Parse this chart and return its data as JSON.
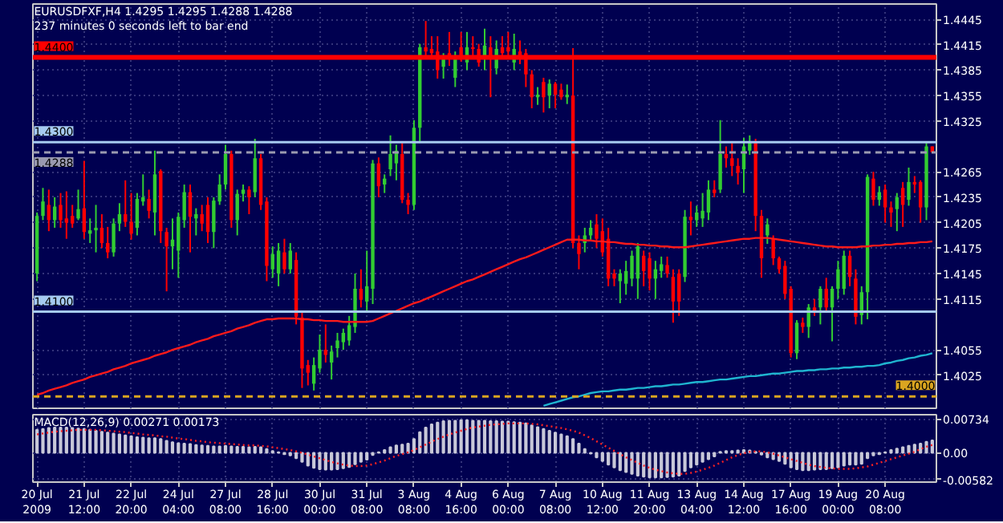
{
  "chart_data": [
    {
      "type": "candlestick",
      "title": "EURUSDFXF,H4  1.4295 1.4295 1.4288 1.4288",
      "subtitle": "237 minutes 0 seconds left to bar end",
      "categories": [
        null,
        null,
        null,
        null,
        null,
        null,
        null,
        null,
        null,
        null,
        null,
        null,
        null,
        null,
        null,
        null,
        null,
        null,
        null,
        null,
        null,
        null,
        null,
        null,
        null,
        null,
        null,
        null,
        null,
        null,
        null,
        null,
        null,
        null,
        null,
        null,
        null,
        null,
        null,
        null,
        null,
        null,
        null,
        null,
        null,
        null,
        null,
        null,
        null,
        null,
        null,
        null,
        null,
        null,
        null,
        null,
        null,
        null,
        null,
        null,
        null,
        null,
        null,
        null,
        null,
        null,
        null,
        null,
        null,
        null,
        null,
        null,
        null,
        null,
        null,
        null,
        null,
        null,
        null,
        null,
        null,
        null,
        null,
        null,
        null,
        null,
        null,
        null,
        null,
        null,
        null,
        null,
        null,
        null,
        null,
        null,
        null,
        null,
        null,
        null,
        null,
        null,
        null,
        null,
        null,
        null,
        null,
        null,
        null,
        null,
        null,
        null,
        null,
        null,
        null,
        null,
        null,
        null,
        null,
        null,
        null,
        null,
        null,
        null,
        null,
        null,
        null,
        null,
        null,
        null,
        null,
        null,
        null,
        null,
        null,
        null,
        null,
        null,
        null,
        null,
        null,
        null,
        null,
        null,
        null,
        null,
        null,
        null,
        null,
        null,
        null,
        null,
        null
      ],
      "ohlc": [
        [
          1.4145,
          1.4217,
          1.4136,
          1.4213
        ],
        [
          1.4213,
          1.4246,
          1.4208,
          1.423
        ],
        [
          1.4226,
          1.4244,
          1.4195,
          1.4208
        ],
        [
          1.4208,
          1.4235,
          1.4199,
          1.4224
        ],
        [
          1.4226,
          1.424,
          1.4199,
          1.4208
        ],
        [
          1.421,
          1.4242,
          1.4186,
          1.4205
        ],
        [
          1.4213,
          1.4226,
          1.4199,
          1.4204
        ],
        [
          1.421,
          1.4244,
          1.4208,
          1.4221
        ],
        [
          1.4222,
          1.4278,
          1.4186,
          1.4194
        ],
        [
          1.4192,
          1.421,
          1.4181,
          1.4196
        ],
        [
          1.4196,
          1.4226,
          1.417,
          1.4199
        ],
        [
          1.4199,
          1.4215,
          1.4175,
          1.4181
        ],
        [
          1.4181,
          1.42,
          1.4163,
          1.417
        ],
        [
          1.417,
          1.421,
          1.4165,
          1.4204
        ],
        [
          1.4204,
          1.4228,
          1.4195,
          1.4215
        ],
        [
          1.4215,
          1.4255,
          1.42,
          1.4206
        ],
        [
          1.4206,
          1.424,
          1.4185,
          1.4192
        ],
        [
          1.4199,
          1.424,
          1.419,
          1.4233
        ],
        [
          1.423,
          1.4262,
          1.4225,
          1.4235
        ],
        [
          1.4233,
          1.4244,
          1.421,
          1.4219
        ],
        [
          1.4217,
          1.429,
          1.419,
          1.4262
        ],
        [
          1.4266,
          1.4268,
          1.4181,
          1.4195
        ],
        [
          1.4194,
          1.4199,
          1.4124,
          1.4177
        ],
        [
          1.4177,
          1.421,
          1.415,
          1.4185
        ],
        [
          1.4172,
          1.4217,
          1.414,
          1.4212
        ],
        [
          1.4208,
          1.425,
          1.4199,
          1.4241
        ],
        [
          1.4241,
          1.425,
          1.417,
          1.4212
        ],
        [
          1.421,
          1.4222,
          1.419,
          1.4215
        ],
        [
          1.4215,
          1.4226,
          1.4195,
          1.4204
        ],
        [
          1.4226,
          1.4235,
          1.4181,
          1.4194
        ],
        [
          1.4194,
          1.4235,
          1.4175,
          1.4231
        ],
        [
          1.423,
          1.4262,
          1.4226,
          1.425
        ],
        [
          1.425,
          1.4297,
          1.4244,
          1.4286
        ],
        [
          1.4286,
          1.429,
          1.4199,
          1.4208
        ],
        [
          1.4208,
          1.4244,
          1.419,
          1.4239
        ],
        [
          1.4239,
          1.425,
          1.423,
          1.4244
        ],
        [
          1.4244,
          1.4248,
          1.4215,
          1.4235
        ],
        [
          1.4241,
          1.4304,
          1.4235,
          1.4281
        ],
        [
          1.4281,
          1.4286,
          1.422,
          1.4226
        ],
        [
          1.423,
          1.4235,
          1.4136,
          1.4154
        ],
        [
          1.415,
          1.4177,
          1.414,
          1.4168
        ],
        [
          1.4145,
          1.4181,
          1.413,
          1.4172
        ],
        [
          1.417,
          1.4186,
          1.4145,
          1.415
        ],
        [
          1.415,
          1.4181,
          1.4145,
          1.4172
        ],
        [
          1.4161,
          1.417,
          1.4085,
          1.4094
        ],
        [
          1.4093,
          1.41,
          1.401,
          1.4033
        ],
        [
          1.4037,
          1.4043,
          1.4013,
          1.4028
        ],
        [
          1.4015,
          1.4046,
          1.4007,
          1.4037
        ],
        [
          1.4033,
          1.4073,
          1.4028,
          1.4055
        ],
        [
          1.4055,
          1.4085,
          1.404,
          1.4049
        ],
        [
          1.404,
          1.406,
          1.402,
          1.4053
        ],
        [
          1.4057,
          1.4075,
          1.4046,
          1.4066
        ],
        [
          1.4064,
          1.408,
          1.4055,
          1.4075
        ],
        [
          1.4066,
          1.4095,
          1.406,
          1.4084
        ],
        [
          1.4082,
          1.4145,
          1.4075,
          1.4127
        ],
        [
          1.4127,
          1.415,
          1.4105,
          1.4114
        ],
        [
          1.4112,
          1.4172,
          1.41,
          1.413
        ],
        [
          1.4127,
          1.4279,
          1.4109,
          1.4275
        ],
        [
          1.4275,
          1.4282,
          1.4235,
          1.4248
        ],
        [
          1.425,
          1.4262,
          1.424,
          1.4257
        ],
        [
          1.4268,
          1.4308,
          1.426,
          1.4286
        ],
        [
          1.4275,
          1.4297,
          1.4255,
          1.429
        ],
        [
          1.4286,
          1.4299,
          1.4228,
          1.4232
        ],
        [
          1.4232,
          1.424,
          1.4215,
          1.4226
        ],
        [
          1.4226,
          1.4326,
          1.422,
          1.4317
        ],
        [
          1.4317,
          1.4416,
          1.4299,
          1.4412
        ],
        [
          1.4412,
          1.4443,
          1.44,
          1.4407
        ],
        [
          1.441,
          1.4425,
          1.4398,
          1.4405
        ],
        [
          1.4407,
          1.4425,
          1.4375,
          1.4385
        ],
        [
          1.4389,
          1.4405,
          1.4375,
          1.44
        ],
        [
          1.4405,
          1.443,
          1.439,
          1.4398
        ],
        [
          1.4376,
          1.4407,
          1.4365,
          1.4398
        ],
        [
          1.4412,
          1.443,
          1.4395,
          1.4402
        ],
        [
          1.4394,
          1.443,
          1.4385,
          1.4412
        ],
        [
          1.4412,
          1.4425,
          1.44,
          1.441
        ],
        [
          1.441,
          1.4416,
          1.4389,
          1.4394
        ],
        [
          1.4398,
          1.4434,
          1.4385,
          1.4414
        ],
        [
          1.4412,
          1.4425,
          1.4353,
          1.4398
        ],
        [
          1.4387,
          1.442,
          1.438,
          1.441
        ],
        [
          1.4412,
          1.4425,
          1.44,
          1.4405
        ],
        [
          1.4412,
          1.443,
          1.44,
          1.4407
        ],
        [
          1.4394,
          1.4428,
          1.4385,
          1.441
        ],
        [
          1.4407,
          1.442,
          1.4392,
          1.4401
        ],
        [
          1.4405,
          1.441,
          1.4365,
          1.438
        ],
        [
          1.438,
          1.4385,
          1.434,
          1.4353
        ],
        [
          1.4353,
          1.4365,
          1.4344,
          1.4356
        ],
        [
          1.4371,
          1.4376,
          1.4335,
          1.4353
        ],
        [
          1.4355,
          1.4374,
          1.434,
          1.4369
        ],
        [
          1.4369,
          1.4371,
          1.434,
          1.4356
        ],
        [
          1.4362,
          1.4369,
          1.435,
          1.4353
        ],
        [
          1.4353,
          1.4368,
          1.4345,
          1.4356
        ],
        [
          1.4355,
          1.4411,
          1.4175,
          1.4181
        ],
        [
          1.4181,
          1.419,
          1.415,
          1.4168
        ],
        [
          1.4181,
          1.4199,
          1.417,
          1.419
        ],
        [
          1.419,
          1.4208,
          1.4185,
          1.4199
        ],
        [
          1.4203,
          1.4215,
          1.4175,
          1.4186
        ],
        [
          1.4195,
          1.421,
          1.4165,
          1.417
        ],
        [
          1.4186,
          1.4199,
          1.413,
          1.4139
        ],
        [
          1.4145,
          1.415,
          1.413,
          1.4139
        ],
        [
          1.4136,
          1.415,
          1.411,
          1.4145
        ],
        [
          1.4133,
          1.416,
          1.412,
          1.4148
        ],
        [
          1.4139,
          1.4172,
          1.413,
          1.4166
        ],
        [
          1.4139,
          1.4181,
          1.4115,
          1.4177
        ],
        [
          1.4166,
          1.4172,
          1.413,
          1.4148
        ],
        [
          1.4163,
          1.417,
          1.4125,
          1.4139
        ],
        [
          1.4139,
          1.416,
          1.4115,
          1.415
        ],
        [
          1.4148,
          1.4165,
          1.414,
          1.4156
        ],
        [
          1.4155,
          1.4165,
          1.414,
          1.4145
        ],
        [
          1.4141,
          1.415,
          1.4087,
          1.4112
        ],
        [
          1.4145,
          1.415,
          1.4095,
          1.4112
        ],
        [
          1.4141,
          1.422,
          1.4135,
          1.4212
        ],
        [
          1.4212,
          1.423,
          1.419,
          1.4208
        ],
        [
          1.4208,
          1.4225,
          1.42,
          1.4217
        ],
        [
          1.421,
          1.424,
          1.42,
          1.4219
        ],
        [
          1.4217,
          1.4255,
          1.4208,
          1.4244
        ],
        [
          1.4244,
          1.4255,
          1.4235,
          1.424
        ],
        [
          1.4244,
          1.4326,
          1.424,
          1.4286
        ],
        [
          1.4286,
          1.4295,
          1.427,
          1.4281
        ],
        [
          1.4281,
          1.4299,
          1.426,
          1.4272
        ],
        [
          1.4272,
          1.4281,
          1.425,
          1.4264
        ],
        [
          1.4268,
          1.4305,
          1.424,
          1.4295
        ],
        [
          1.429,
          1.4308,
          1.4285,
          1.4299
        ],
        [
          1.4299,
          1.4304,
          1.4195,
          1.4213
        ],
        [
          1.4213,
          1.422,
          1.414,
          1.4163
        ],
        [
          1.419,
          1.421,
          1.418,
          1.4203
        ],
        [
          1.4186,
          1.419,
          1.4155,
          1.4163
        ],
        [
          1.4163,
          1.4165,
          1.4145,
          1.415
        ],
        [
          1.4154,
          1.416,
          1.4115,
          1.4121
        ],
        [
          1.4127,
          1.413,
          1.4046,
          1.4051
        ],
        [
          1.4051,
          1.409,
          1.4044,
          1.4087
        ],
        [
          1.4087,
          1.4093,
          1.4075,
          1.4082
        ],
        [
          1.4082,
          1.4109,
          1.4069,
          1.4105
        ],
        [
          1.4105,
          1.4115,
          1.4095,
          1.41
        ],
        [
          1.4105,
          1.413,
          1.4085,
          1.4127
        ],
        [
          1.4127,
          1.414,
          1.41,
          1.4105
        ],
        [
          1.4105,
          1.413,
          1.4065,
          1.4127
        ],
        [
          1.4127,
          1.416,
          1.4115,
          1.415
        ],
        [
          1.4127,
          1.4172,
          1.412,
          1.4166
        ],
        [
          1.4166,
          1.4172,
          1.413,
          1.4141
        ],
        [
          1.4139,
          1.415,
          1.4085,
          1.4094
        ],
        [
          1.4096,
          1.413,
          1.4085,
          1.4123
        ],
        [
          1.4123,
          1.4262,
          1.4091,
          1.4259
        ],
        [
          1.4257,
          1.4265,
          1.4225,
          1.4232
        ],
        [
          1.4232,
          1.4248,
          1.4225,
          1.4241
        ],
        [
          1.4244,
          1.425,
          1.4205,
          1.4223
        ],
        [
          1.4223,
          1.423,
          1.42,
          1.4217
        ],
        [
          1.4221,
          1.424,
          1.4195,
          1.4235
        ],
        [
          1.4246,
          1.4253,
          1.42,
          1.4226
        ],
        [
          1.4232,
          1.427,
          1.4225,
          1.4253
        ],
        [
          1.4253,
          1.426,
          1.424,
          1.425
        ],
        [
          1.4253,
          1.4255,
          1.4205,
          1.4223
        ],
        [
          1.4223,
          1.4299,
          1.4208,
          1.4295
        ],
        [
          1.4295,
          1.4295,
          1.4288,
          1.4288
        ]
      ],
      "colors": [
        "#32cd32",
        "#32cd32",
        "#ff0000",
        "#32cd32",
        "#ff0000",
        "#ff0000",
        "#ff0000",
        "#32cd32",
        "#ff0000",
        "#32cd32",
        "#32cd32",
        "#ff0000",
        "#ff0000",
        "#32cd32",
        "#32cd32",
        "#ff0000",
        "#ff0000",
        "#32cd32",
        "#32cd32",
        "#ff0000",
        "#32cd32",
        "#ff0000",
        "#ff0000",
        "#32cd32",
        "#32cd32",
        "#32cd32",
        "#ff0000",
        "#32cd32",
        "#ff0000",
        "#ff0000",
        "#32cd32",
        "#32cd32",
        "#32cd32",
        "#ff0000",
        "#32cd32",
        "#32cd32",
        "#ff0000",
        "#32cd32",
        "#ff0000",
        "#ff0000",
        "#32cd32",
        "#32cd32",
        "#ff0000",
        "#32cd32",
        "#ff0000",
        "#ff0000",
        "#ff0000",
        "#32cd32",
        "#32cd32",
        "#ff0000",
        "#32cd32",
        "#32cd32",
        "#32cd32",
        "#32cd32",
        "#32cd32",
        "#ff0000",
        "#32cd32",
        "#32cd32",
        "#ff0000",
        "#32cd32",
        "#32cd32",
        "#32cd32",
        "#ff0000",
        "#ff0000",
        "#32cd32",
        "#32cd32",
        "#ff0000",
        "#ff0000",
        "#ff0000",
        "#32cd32",
        "#ff0000",
        "#32cd32",
        "#ff0000",
        "#32cd32",
        "#ff0000",
        "#ff0000",
        "#32cd32",
        "#ff0000",
        "#32cd32",
        "#ff0000",
        "#ff0000",
        "#32cd32",
        "#ff0000",
        "#ff0000",
        "#ff0000",
        "#32cd32",
        "#ff0000",
        "#32cd32",
        "#ff0000",
        "#ff0000",
        "#32cd32",
        "#ff0000",
        "#ff0000",
        "#32cd32",
        "#32cd32",
        "#ff0000",
        "#ff0000",
        "#ff0000",
        "#ff0000",
        "#32cd32",
        "#32cd32",
        "#32cd32",
        "#32cd32",
        "#ff0000",
        "#ff0000",
        "#32cd32",
        "#32cd32",
        "#ff0000",
        "#ff0000",
        "#ff0000",
        "#32cd32",
        "#ff0000",
        "#32cd32",
        "#32cd32",
        "#32cd32",
        "#ff0000",
        "#32cd32",
        "#ff0000",
        "#ff0000",
        "#ff0000",
        "#32cd32",
        "#32cd32",
        "#ff0000",
        "#ff0000",
        "#32cd32",
        "#ff0000",
        "#ff0000",
        "#ff0000",
        "#ff0000",
        "#32cd32",
        "#ff0000",
        "#32cd32",
        "#ff0000",
        "#32cd32",
        "#ff0000",
        "#32cd32",
        "#32cd32",
        "#32cd32",
        "#ff0000",
        "#ff0000",
        "#32cd32",
        "#32cd32",
        "#ff0000",
        "#32cd32",
        "#ff0000",
        "#ff0000",
        "#32cd32",
        "#ff0000",
        "#32cd32",
        "#ff0000",
        "#ff0000",
        "#32cd32",
        "#ff0000"
      ],
      "series": [
        {
          "type": "line",
          "color": "#ff1a1a",
          "values": [
            1.4002,
            1.4004,
            1.4007,
            1.4009,
            1.4011,
            1.4013,
            1.4016,
            1.4018,
            1.402,
            1.4023,
            1.4025,
            1.4027,
            1.4029,
            1.4032,
            1.4034,
            1.4036,
            1.4039,
            1.4041,
            1.4043,
            1.4045,
            1.4048,
            1.405,
            1.4052,
            1.4055,
            1.4057,
            1.4059,
            1.4061,
            1.4064,
            1.4066,
            1.4068,
            1.4071,
            1.4073,
            1.4075,
            1.4077,
            1.408,
            1.4082,
            1.4084,
            1.4087,
            1.4089,
            1.4091,
            1.4091,
            1.4092,
            1.4092,
            1.4092,
            1.4092,
            1.4091,
            1.4091,
            1.409,
            1.409,
            1.4089,
            1.4089,
            1.4089,
            1.4088,
            1.4088,
            1.4088,
            1.4088,
            1.4088,
            1.4089,
            1.4092,
            1.4095,
            1.4098,
            1.4101,
            1.4104,
            1.4107,
            1.411,
            1.4112,
            1.4115,
            1.4118,
            1.4121,
            1.4124,
            1.4127,
            1.413,
            1.4133,
            1.4136,
            1.4138,
            1.4141,
            1.4144,
            1.4147,
            1.415,
            1.4153,
            1.4156,
            1.4159,
            1.4162,
            1.4164,
            1.4167,
            1.417,
            1.4173,
            1.4176,
            1.4179,
            1.4182,
            1.4185,
            1.4185,
            1.4185,
            1.4184,
            1.4184,
            1.4183,
            1.4183,
            1.4182,
            1.4182,
            1.4181,
            1.418,
            1.418,
            1.4179,
            1.4179,
            1.4178,
            1.4178,
            1.4177,
            1.4177,
            1.4176,
            1.4176,
            1.4176,
            1.4177,
            1.4178,
            1.4179,
            1.418,
            1.4181,
            1.4182,
            1.4183,
            1.4184,
            1.4185,
            1.4186,
            1.4186,
            1.4187,
            1.4187,
            1.4187,
            1.4186,
            1.4185,
            1.4184,
            1.4183,
            1.4182,
            1.4181,
            1.418,
            1.4179,
            1.4178,
            1.4177,
            1.4177,
            1.4176,
            1.4176,
            1.4176,
            1.4176,
            1.4177,
            1.4177,
            1.4178,
            1.4178,
            1.4179,
            1.4179,
            1.418,
            1.418,
            1.4181,
            1.4181,
            1.4182,
            1.4182,
            1.4183
          ]
        },
        {
          "type": "line",
          "color": "#1fb5d0",
          "values": [
            null,
            null,
            null,
            null,
            null,
            null,
            null,
            null,
            null,
            null,
            null,
            null,
            null,
            null,
            null,
            null,
            null,
            null,
            null,
            null,
            null,
            null,
            null,
            null,
            null,
            null,
            null,
            null,
            null,
            null,
            null,
            null,
            null,
            null,
            null,
            null,
            null,
            null,
            null,
            null,
            null,
            null,
            null,
            null,
            null,
            null,
            null,
            null,
            null,
            null,
            null,
            null,
            null,
            null,
            null,
            null,
            null,
            null,
            null,
            null,
            null,
            null,
            null,
            null,
            null,
            null,
            null,
            null,
            null,
            null,
            null,
            null,
            null,
            null,
            null,
            null,
            null,
            null,
            null,
            null,
            null,
            null,
            null,
            null,
            null,
            null,
            1.3989,
            1.3991,
            1.3993,
            1.3995,
            1.3997,
            1.3999,
            1.4,
            1.4002,
            1.4004,
            1.4005,
            1.4006,
            1.4006,
            1.4007,
            1.4008,
            1.4008,
            1.4009,
            1.401,
            1.401,
            1.4011,
            1.4012,
            1.4012,
            1.4013,
            1.4014,
            1.4014,
            1.4015,
            1.4016,
            1.4017,
            1.4017,
            1.4018,
            1.4019,
            1.402,
            1.402,
            1.4021,
            1.4022,
            1.4023,
            1.4024,
            1.4024,
            1.4025,
            1.4026,
            1.4027,
            1.4027,
            1.4028,
            1.4029,
            1.403,
            1.403,
            1.4031,
            1.4031,
            1.4032,
            1.4032,
            1.4033,
            1.4033,
            1.4034,
            1.4034,
            1.4035,
            1.4035,
            1.4036,
            1.4036,
            1.4037,
            1.4039,
            1.404,
            1.4042,
            1.4043,
            1.4045,
            1.4046,
            1.4048,
            1.4049,
            1.4051
          ]
        }
      ],
      "ylim": [
        1.3986,
        1.4463
      ],
      "yticks": [
        1.4445,
        1.4415,
        1.4385,
        1.4355,
        1.4325,
        1.4265,
        1.4235,
        1.4205,
        1.4175,
        1.4145,
        1.4115,
        1.4055,
        1.4025
      ],
      "ref_lines": [
        {
          "axis": "y",
          "value": 1.44,
          "label": "1.4400",
          "color": "#ff0000",
          "line_style": "solid"
        },
        {
          "axis": "y",
          "value": 1.43,
          "label": "1.4300",
          "color": "#a6caf0",
          "line_style": "solid"
        },
        {
          "axis": "y",
          "value": 1.4288,
          "label": "1.4288",
          "color": "#9a9ab0",
          "line_style": "dashed"
        },
        {
          "axis": "y",
          "value": 1.41,
          "label": "1.4100",
          "color": "#a6caf0",
          "line_style": "solid"
        },
        {
          "axis": "y",
          "value": 1.4,
          "label": "1.4000",
          "color": "#daa520",
          "line_style": "dashed"
        }
      ],
      "grid": true,
      "tick_labels": "y"
    },
    {
      "type": "bar",
      "title": "MACD(12,26,9) 0.00271 0.00173",
      "categories": [
        "20 Jul 2009",
        null,
        null,
        null,
        null,
        null,
        null,
        null,
        "21 Jul 12:00",
        null,
        null,
        null,
        null,
        null,
        null,
        null,
        "22 Jul 20:00",
        null,
        null,
        null,
        null,
        null,
        null,
        null,
        "24 Jul 04:00",
        null,
        null,
        null,
        null,
        null,
        null,
        null,
        "27 Jul 08:00",
        null,
        null,
        null,
        null,
        null,
        null,
        null,
        "28 Jul 16:00",
        null,
        null,
        null,
        null,
        null,
        null,
        null,
        "30 Jul 00:00",
        null,
        null,
        null,
        null,
        null,
        null,
        null,
        "31 Jul 08:00",
        null,
        null,
        null,
        null,
        null,
        null,
        null,
        "3 Aug 08:00",
        null,
        null,
        null,
        null,
        null,
        null,
        null,
        "4 Aug 16:00",
        null,
        null,
        null,
        null,
        null,
        null,
        null,
        "6 Aug 00:00",
        null,
        null,
        null,
        null,
        null,
        null,
        null,
        "7 Aug 08:00",
        null,
        null,
        null,
        null,
        null,
        null,
        null,
        "10 Aug 12:00",
        null,
        null,
        null,
        null,
        null,
        null,
        null,
        "11 Aug 20:00",
        null,
        null,
        null,
        null,
        null,
        null,
        null,
        "13 Aug 04:00",
        null,
        null,
        null,
        null,
        null,
        null,
        null,
        "14 Aug 12:00",
        null,
        null,
        null,
        null,
        null,
        null,
        null,
        "17 Aug 16:00",
        null,
        null,
        null,
        null,
        null,
        null,
        null,
        "19 Aug 00:00",
        null,
        null,
        null,
        null,
        null,
        null,
        null,
        "20 Aug 08:00",
        null,
        null,
        null,
        null,
        null,
        null,
        null,
        null
      ],
      "series": [
        {
          "type": "bar",
          "color": "#c8c8d8",
          "values": [
            0.005,
            0.0052,
            0.0054,
            0.0055,
            0.0055,
            0.0055,
            0.0054,
            0.0053,
            0.0052,
            0.005,
            0.0048,
            0.0046,
            0.0044,
            0.0042,
            0.004,
            0.0038,
            0.0036,
            0.0034,
            0.0033,
            0.0032,
            0.0032,
            0.003,
            0.0026,
            0.0023,
            0.0021,
            0.002,
            0.0019,
            0.0017,
            0.0016,
            0.0015,
            0.0014,
            0.0014,
            0.0015,
            0.0014,
            0.0013,
            0.0013,
            0.0012,
            0.0013,
            0.0012,
            0.0008,
            0.0004,
            0.0001,
            -0.0003,
            -0.0006,
            -0.0012,
            -0.002,
            -0.0028,
            -0.0033,
            -0.0036,
            -0.0037,
            -0.0037,
            -0.0036,
            -0.0034,
            -0.0031,
            -0.0025,
            -0.002,
            -0.0015,
            -0.0005,
            0.0001,
            0.0006,
            0.0012,
            0.0016,
            0.0018,
            0.002,
            0.003,
            0.0045,
            0.0055,
            0.0062,
            0.0066,
            0.0069,
            0.007,
            0.007,
            0.0071,
            0.0071,
            0.007,
            0.007,
            0.007,
            0.0069,
            0.0069,
            0.0068,
            0.0068,
            0.0067,
            0.0066,
            0.0064,
            0.006,
            0.0056,
            0.0052,
            0.0048,
            0.0044,
            0.004,
            0.0036,
            0.003,
            0.002,
            0.0008,
            -0.0002,
            -0.001,
            -0.0018,
            -0.0026,
            -0.0032,
            -0.0038,
            -0.0042,
            -0.0046,
            -0.005,
            -0.0052,
            -0.0054,
            -0.0054,
            -0.0054,
            -0.0053,
            -0.0052,
            -0.005,
            -0.004,
            -0.0032,
            -0.0026,
            -0.002,
            -0.0014,
            -0.0008,
            0.0002,
            0.0004,
            0.0004,
            0.0005,
            0.0006,
            0.0005,
            0.0002,
            -0.0004,
            -0.001,
            -0.0014,
            -0.0018,
            -0.0024,
            -0.0032,
            -0.0036,
            -0.0038,
            -0.0038,
            -0.0037,
            -0.0036,
            -0.0036,
            -0.0034,
            -0.0032,
            -0.0028,
            -0.0026,
            -0.0026,
            -0.0024,
            -0.0012,
            -0.0006,
            -0.0003,
            0.0001,
            0.0006,
            0.0009,
            0.0012,
            0.0015,
            0.0018,
            0.002,
            0.0024,
            0.0027
          ]
        },
        {
          "type": "line",
          "color": "#ff2020",
          "line_style": "dotted",
          "values": [
            0.004,
            0.0042,
            0.0044,
            0.0046,
            0.0047,
            0.0048,
            0.0049,
            0.005,
            0.005,
            0.005,
            0.005,
            0.0049,
            0.0048,
            0.0047,
            0.0046,
            0.0045,
            0.0043,
            0.0042,
            0.004,
            0.0039,
            0.0038,
            0.0036,
            0.0035,
            0.0033,
            0.0031,
            0.003,
            0.0028,
            0.0026,
            0.0025,
            0.0023,
            0.0022,
            0.0021,
            0.002,
            0.0019,
            0.0018,
            0.0017,
            0.0016,
            0.0016,
            0.0015,
            0.0014,
            0.0012,
            0.001,
            0.0008,
            0.0006,
            0.0003,
            0.0,
            -0.0004,
            -0.0008,
            -0.0012,
            -0.0016,
            -0.002,
            -0.0023,
            -0.0026,
            -0.0028,
            -0.0029,
            -0.0029,
            -0.0028,
            -0.0025,
            -0.0021,
            -0.0017,
            -0.0012,
            -0.0007,
            -0.0003,
            0.0001,
            0.0006,
            0.0012,
            0.0018,
            0.0024,
            0.003,
            0.0035,
            0.004,
            0.0044,
            0.0048,
            0.0052,
            0.0055,
            0.0057,
            0.0059,
            0.0061,
            0.0062,
            0.0063,
            0.0064,
            0.0064,
            0.0064,
            0.0064,
            0.0063,
            0.0062,
            0.006,
            0.0058,
            0.0056,
            0.0054,
            0.0051,
            0.0048,
            0.0044,
            0.0038,
            0.0032,
            0.0025,
            0.0018,
            0.0011,
            0.0004,
            -0.0003,
            -0.001,
            -0.0016,
            -0.0022,
            -0.0028,
            -0.0033,
            -0.0037,
            -0.004,
            -0.0043,
            -0.0045,
            -0.0046,
            -0.0046,
            -0.0044,
            -0.0041,
            -0.0037,
            -0.0033,
            -0.0028,
            -0.0022,
            -0.0016,
            -0.001,
            -0.0005,
            -0.0001,
            0.0002,
            0.0003,
            0.0003,
            0.0001,
            -0.0002,
            -0.0006,
            -0.001,
            -0.0014,
            -0.0018,
            -0.0022,
            -0.0026,
            -0.0029,
            -0.0031,
            -0.0033,
            -0.0034,
            -0.0035,
            -0.0035,
            -0.0035,
            -0.0034,
            -0.0032,
            -0.003,
            -0.0026,
            -0.0022,
            -0.0018,
            -0.0014,
            -0.001,
            -0.0006,
            -0.0002,
            0.0002,
            0.0008,
            0.0013,
            0.0017
          ]
        }
      ],
      "ylim": [
        -0.0064,
        0.0083
      ],
      "yticks": [
        0.00734,
        {
          "value": 0,
          "label": "0.00"
        },
        -0.00582
      ],
      "grid": true
    }
  ]
}
